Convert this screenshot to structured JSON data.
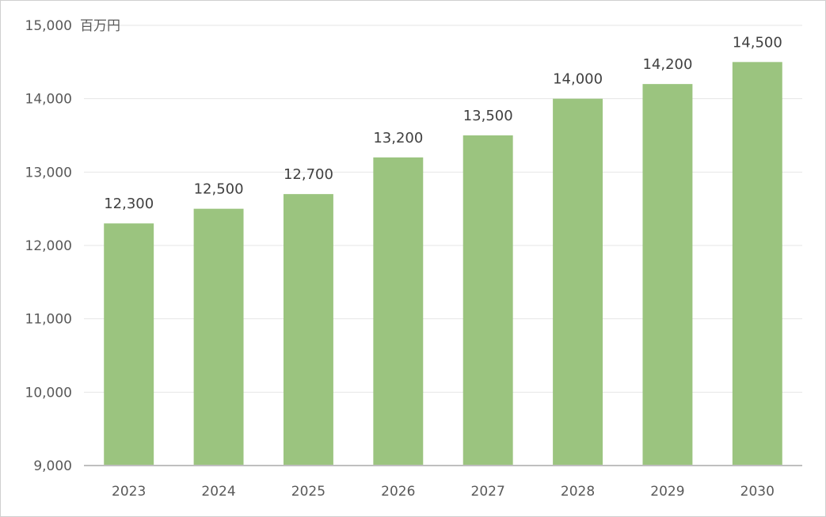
{
  "chart_data": {
    "type": "bar",
    "categories": [
      "2023",
      "2024",
      "2025",
      "2026",
      "2027",
      "2028",
      "2029",
      "2030"
    ],
    "series": [
      {
        "values": [
          12300,
          12500,
          12700,
          13200,
          13500,
          14000,
          14200,
          14500
        ],
        "color": "#9BC47F"
      }
    ],
    "data_labels": [
      "12,300",
      "12,500",
      "12,700",
      "13,200",
      "13,500",
      "14,000",
      "14,200",
      "14,500"
    ],
    "y_unit": "百万円",
    "ylim": [
      9000,
      15000
    ],
    "yticks": [
      9000,
      10000,
      11000,
      12000,
      13000,
      14000,
      15000
    ],
    "ytick_labels": [
      "9,000",
      "10,000",
      "11,000",
      "12,000",
      "13,000",
      "14,000",
      "15,000"
    ],
    "grid": true,
    "colors": {
      "bar": "#9BC47F",
      "gridline": "#e6e6e6",
      "axis": "#bfbfbf",
      "text": "#595959"
    }
  }
}
